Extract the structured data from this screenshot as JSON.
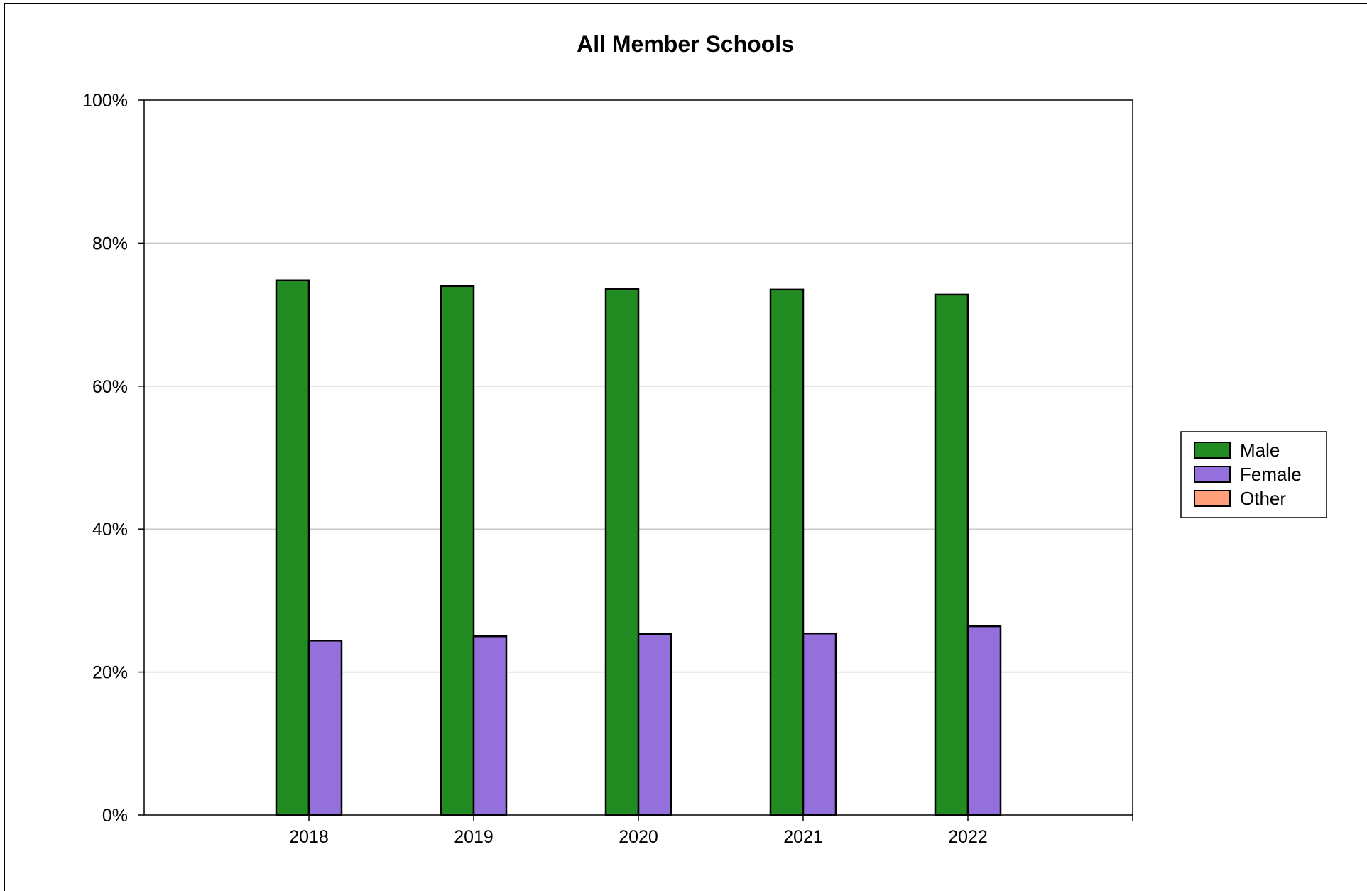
{
  "chart_data": {
    "type": "bar",
    "title": "All Member Schools",
    "xlabel": "",
    "ylabel": "",
    "categories": [
      "2018",
      "2019",
      "2020",
      "2021",
      "2022"
    ],
    "series": [
      {
        "name": "Male",
        "color": "#228B22",
        "values": [
          74.8,
          74.0,
          73.6,
          73.5,
          72.8
        ]
      },
      {
        "name": "Female",
        "color": "#9370DB",
        "values": [
          24.4,
          25.0,
          25.3,
          25.4,
          26.4
        ]
      },
      {
        "name": "Other",
        "color": "#FFA07A",
        "values": [
          0.0,
          0.0,
          0.0,
          0.0,
          0.0
        ]
      }
    ],
    "ylim": [
      0,
      100
    ],
    "yticks": [
      "0%",
      "20%",
      "40%",
      "60%",
      "80%",
      "100%"
    ],
    "grid": true,
    "legend": "right"
  }
}
